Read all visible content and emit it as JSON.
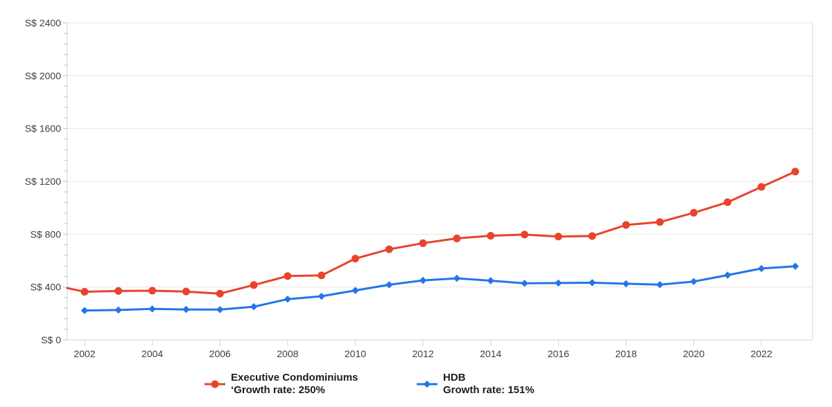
{
  "chart_data": {
    "type": "line",
    "title": "",
    "x": [
      2002,
      2003,
      2004,
      2005,
      2006,
      2007,
      2008,
      2009,
      2010,
      2011,
      2012,
      2013,
      2014,
      2015,
      2016,
      2017,
      2018,
      2019,
      2020,
      2021,
      2022,
      2023
    ],
    "series": [
      {
        "name": "Executive Condominiums",
        "growth_label": "‘Growth rate: 250%",
        "color": "#e8432c",
        "marker": "circle",
        "lead_in_value": 392,
        "values": [
          364,
          370,
          372,
          366,
          350,
          415,
          483,
          488,
          615,
          686,
          732,
          768,
          788,
          797,
          782,
          786,
          870,
          892,
          962,
          1042,
          1158,
          1274
        ]
      },
      {
        "name": "HDB",
        "growth_label": "Growth rate: 151%",
        "color": "#2276e8",
        "marker": "diamond",
        "values": [
          222,
          226,
          234,
          230,
          229,
          251,
          308,
          330,
          374,
          417,
          450,
          466,
          448,
          428,
          430,
          433,
          425,
          418,
          442,
          490,
          540,
          557
        ]
      }
    ],
    "ylim": [
      0,
      2400
    ],
    "y_major_step": 400,
    "y_minor_step": 80,
    "y_tick_labels": [
      "S$ 0",
      "S$ 400",
      "S$ 800",
      "S$ 1200",
      "S$ 1600",
      "S$ 2000",
      "S$ 2400"
    ],
    "x_tick_years": [
      2002,
      2004,
      2006,
      2008,
      2010,
      2012,
      2014,
      2016,
      2018,
      2020,
      2022
    ],
    "xlabel": "",
    "ylabel": "",
    "grid": true,
    "legend_position": "bottom",
    "colors": {
      "gridline": "#e6e6e6",
      "axis_line": "#c9d6ec",
      "tick_minor": "#aab2bf",
      "tick_major": "#b7c2d4",
      "tick_label": "#3d3d3d",
      "legend_text": "#1c1c1c",
      "background": "#ffffff"
    }
  }
}
